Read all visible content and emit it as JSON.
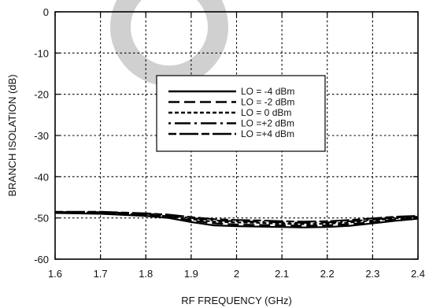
{
  "chart_data": {
    "type": "line",
    "title": "",
    "xlabel": "RF FREQUENCY (GHz)",
    "ylabel": "BRANCH ISOLATION (dB)",
    "xlim": [
      1.6,
      2.4
    ],
    "ylim": [
      -60,
      0
    ],
    "xticks": [
      "1.6",
      "1.7",
      "1.8",
      "1.9",
      "2",
      "2.1",
      "2.2",
      "2.3",
      "2.4"
    ],
    "yticks": [
      "0",
      "-10",
      "-20",
      "-30",
      "-40",
      "-50",
      "-60"
    ],
    "grid": true,
    "legend_position": "center-right",
    "x": [
      1.6,
      1.7,
      1.8,
      1.85,
      1.9,
      1.95,
      2.0,
      2.05,
      2.1,
      2.15,
      2.2,
      2.25,
      2.3,
      2.35,
      2.4
    ],
    "series": [
      {
        "name": "LO = -4 dBm",
        "style": "solid",
        "values": [
          -48.8,
          -49.0,
          -49.5,
          -50.0,
          -51.0,
          -51.8,
          -52.0,
          -52.1,
          -52.2,
          -52.3,
          -52.2,
          -51.9,
          -51.3,
          -50.7,
          -50.2
        ]
      },
      {
        "name": "LO = -2 dBm",
        "style": "long-dash",
        "values": [
          -48.7,
          -48.9,
          -49.3,
          -49.8,
          -50.6,
          -51.3,
          -51.6,
          -51.7,
          -51.8,
          -51.9,
          -51.8,
          -51.5,
          -51.0,
          -50.4,
          -50.0
        ]
      },
      {
        "name": "LO =  0 dBm",
        "style": "short-dash",
        "values": [
          -48.6,
          -48.7,
          -49.2,
          -49.6,
          -50.3,
          -50.9,
          -51.1,
          -51.2,
          -51.4,
          -51.5,
          -51.4,
          -51.1,
          -50.6,
          -50.1,
          -49.7
        ]
      },
      {
        "name": "LO =+2 dBm",
        "style": "dash-dot",
        "values": [
          -48.6,
          -48.6,
          -49.0,
          -49.4,
          -50.0,
          -50.6,
          -50.8,
          -50.9,
          -51.1,
          -51.2,
          -51.1,
          -50.8,
          -50.4,
          -49.9,
          -49.6
        ]
      },
      {
        "name": "LO =+4 dBm",
        "style": "long-dash-2",
        "values": [
          -48.5,
          -48.5,
          -48.9,
          -49.2,
          -49.8,
          -50.3,
          -50.5,
          -50.6,
          -50.8,
          -50.9,
          -50.8,
          -50.5,
          -50.1,
          -49.7,
          -49.5
        ]
      }
    ]
  }
}
